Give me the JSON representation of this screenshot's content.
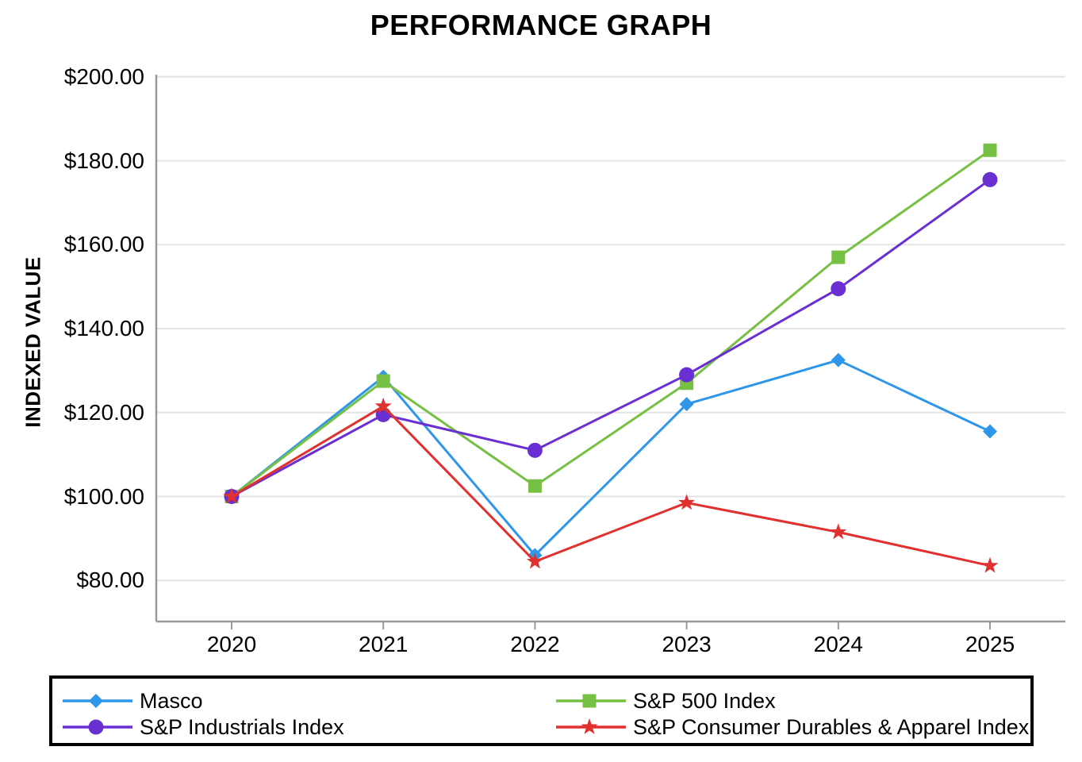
{
  "title": "PERFORMANCE GRAPH",
  "chart_data": {
    "type": "line",
    "title": "PERFORMANCE GRAPH",
    "xlabel": "",
    "ylabel": "INDEXED VALUE",
    "x": [
      2020,
      2021,
      2022,
      2023,
      2024,
      2025
    ],
    "x_tick_labels": [
      "2020",
      "2021",
      "2022",
      "2023",
      "2024",
      "2025"
    ],
    "y_tick_labels": [
      "$200.00",
      "$180.00",
      "$160.00",
      "$140.00",
      "$120.00",
      "$100.00",
      "$80.00"
    ],
    "y_tick_values": [
      200,
      180,
      160,
      140,
      120,
      100,
      80
    ],
    "ylim": [
      80,
      200
    ],
    "grid": "horizontal",
    "legend_position": "bottom-boxed-two-columns",
    "series": [
      {
        "name": "Masco",
        "marker": "diamond",
        "color": "#2E97EA",
        "values": [
          100.0,
          128.5,
          86.0,
          122.0,
          132.5,
          115.5
        ]
      },
      {
        "name": "S&P 500 Index",
        "marker": "square",
        "color": "#76C043",
        "values": [
          100.0,
          127.5,
          102.5,
          127.0,
          157.0,
          182.5
        ]
      },
      {
        "name": "S&P Industrials Index",
        "marker": "circle",
        "color": "#6A2FD3",
        "values": [
          100.0,
          119.5,
          111.0,
          129.0,
          149.5,
          175.5
        ]
      },
      {
        "name": "S&P Consumer Durables & Apparel Index",
        "marker": "star",
        "color": "#E0312E",
        "values": [
          100.0,
          121.5,
          84.5,
          98.5,
          91.5,
          83.5
        ]
      }
    ],
    "colors": {
      "gridline": "#E4E4E4",
      "axis": "#9A9A9A",
      "text": "#000000",
      "legend_border": "#000000"
    }
  }
}
